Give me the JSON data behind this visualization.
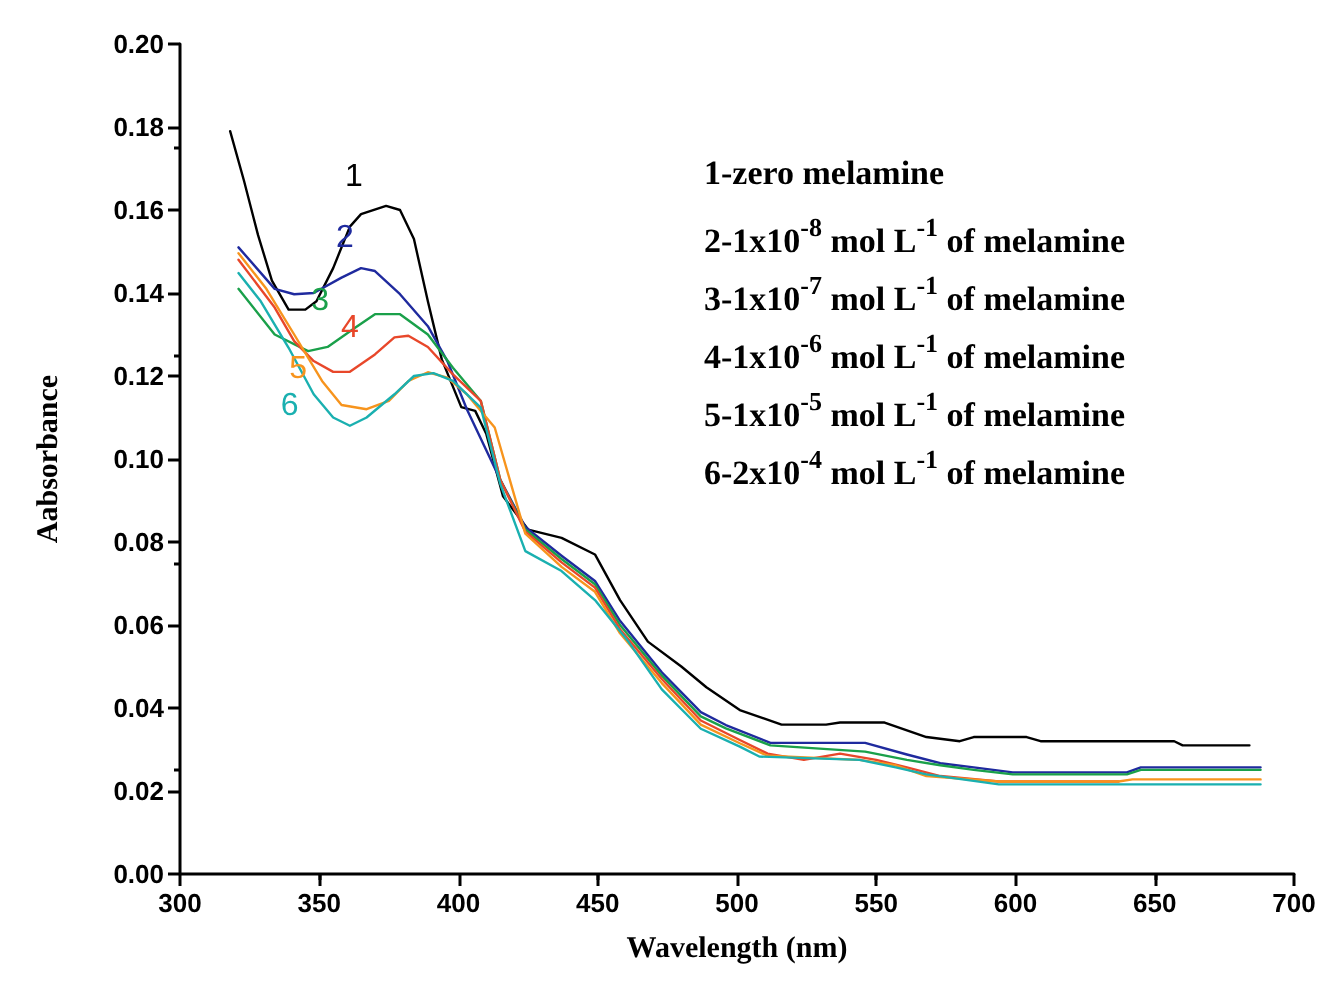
{
  "chart_data": {
    "type": "line",
    "xlabel": "Wavelength (nm)",
    "ylabel": "Aabsorbance",
    "xlim": [
      300,
      700
    ],
    "xticks": [
      300,
      350,
      400,
      450,
      500,
      550,
      600,
      650,
      700
    ],
    "ylim": [
      0,
      0.2
    ],
    "yticks": [
      {
        "value": 0,
        "label": "0.00"
      },
      0.02,
      0.04,
      0.06,
      0.08,
      {
        "value": 0.1,
        "label": "0.10"
      },
      0.12,
      0.14,
      0.16,
      0.18,
      {
        "value": 0.2,
        "label": "0.20"
      }
    ],
    "grid": false,
    "marker": "none",
    "line_style": "solid",
    "series": [
      {
        "name": "1",
        "color": "#000000",
        "x": [
          318,
          323,
          328,
          333,
          339,
          345,
          349,
          355,
          361,
          365,
          374,
          379,
          384,
          389,
          394,
          401,
          406,
          410,
          416,
          425,
          437,
          449,
          458,
          468,
          480,
          489,
          501,
          516,
          532,
          537,
          553,
          568,
          580,
          585,
          604,
          609,
          657,
          660,
          684
        ],
        "values": [
          0.179,
          0.167,
          0.154,
          0.143,
          0.136,
          0.136,
          0.138,
          0.146,
          0.156,
          0.159,
          0.161,
          0.16,
          0.153,
          0.138,
          0.124,
          0.1125,
          0.1116,
          0.106,
          0.091,
          0.083,
          0.081,
          0.077,
          0.066,
          0.056,
          0.05,
          0.045,
          0.0395,
          0.036,
          0.036,
          0.0365,
          0.0365,
          0.033,
          0.032,
          0.033,
          0.033,
          0.032,
          0.032,
          0.031,
          0.031
        ]
      },
      {
        "name": "2",
        "color": "#1f2a9e",
        "x": [
          321,
          334,
          341,
          348,
          358,
          365,
          370,
          379,
          389,
          396,
          403,
          415,
          424,
          437,
          449,
          458,
          473,
          487,
          496,
          512,
          546,
          561,
          573,
          585,
          599,
          640,
          645,
          688
        ],
        "values": [
          0.151,
          0.141,
          0.1397,
          0.14,
          0.1437,
          0.146,
          0.1453,
          0.1397,
          0.132,
          0.1236,
          0.112,
          0.095,
          0.0836,
          0.0767,
          0.0706,
          0.061,
          0.0486,
          0.039,
          0.0359,
          0.0316,
          0.0316,
          0.0288,
          0.0267,
          0.0257,
          0.0245,
          0.0245,
          0.0257,
          0.0257
        ]
      },
      {
        "name": "3",
        "color": "#1aa04a",
        "x": [
          321,
          334,
          346,
          353,
          363,
          370,
          379,
          389,
          398,
          408,
          415,
          424,
          437,
          449,
          458,
          473,
          487,
          496,
          512,
          546,
          561,
          573,
          585,
          599,
          640,
          645,
          688
        ],
        "values": [
          0.141,
          0.13,
          0.126,
          0.127,
          0.1317,
          0.1349,
          0.1349,
          0.13,
          0.122,
          0.114,
          0.095,
          0.083,
          0.0759,
          0.0698,
          0.06,
          0.0478,
          0.038,
          0.0351,
          0.031,
          0.0295,
          0.0275,
          0.0262,
          0.0251,
          0.024,
          0.024,
          0.0251,
          0.0251
        ]
      },
      {
        "name": "4",
        "color": "#e8472a",
        "x": [
          321,
          334,
          341,
          348,
          355,
          361,
          370,
          377,
          382,
          389,
          398,
          408,
          415,
          424,
          437,
          449,
          458,
          473,
          487,
          501,
          511,
          524,
          537,
          550,
          561,
          573,
          594,
          637
        ],
        "values": [
          0.148,
          0.1365,
          0.1284,
          0.1236,
          0.121,
          0.121,
          0.1252,
          0.1293,
          0.1297,
          0.127,
          0.1204,
          0.114,
          0.095,
          0.0825,
          0.0751,
          0.069,
          0.059,
          0.047,
          0.037,
          0.0323,
          0.029,
          0.0275,
          0.029,
          0.0275,
          0.0257,
          0.0236,
          0.0223,
          0.0223
        ]
      },
      {
        "name": "5",
        "color": "#f7941d",
        "x": [
          321,
          331,
          341,
          351,
          358,
          367,
          375,
          382,
          389,
          396,
          403,
          413,
          424,
          437,
          449,
          458,
          473,
          487,
          501,
          511,
          544,
          557,
          568,
          594,
          637,
          642,
          688
        ],
        "values": [
          0.1496,
          0.141,
          0.13,
          0.1188,
          0.113,
          0.112,
          0.114,
          0.1188,
          0.1209,
          0.1196,
          0.1156,
          0.1076,
          0.082,
          0.074,
          0.068,
          0.058,
          0.046,
          0.036,
          0.0315,
          0.0285,
          0.0275,
          0.0262,
          0.0236,
          0.0223,
          0.0223,
          0.0228,
          0.0228
        ]
      },
      {
        "name": "6",
        "color": "#1ab0b0",
        "x": [
          321,
          329,
          339,
          348,
          355,
          361,
          367,
          377,
          384,
          391,
          398,
          408,
          415,
          424,
          437,
          449,
          461,
          473,
          487,
          501,
          508,
          544,
          557,
          568,
          594,
          688
        ],
        "values": [
          0.1448,
          0.138,
          0.1268,
          0.1156,
          0.11,
          0.108,
          0.11,
          0.1156,
          0.12,
          0.1207,
          0.1188,
          0.1124,
          0.094,
          0.0778,
          0.073,
          0.066,
          0.056,
          0.0445,
          0.035,
          0.0307,
          0.0283,
          0.0275,
          0.0257,
          0.024,
          0.0216,
          0.0216
        ]
      }
    ],
    "annotations": [
      "1-zero melamine",
      "2-1x10$^{-8}$ mol L$^{-1}$ of melamine",
      "3-1x10$^{-7}$ mol L$^{-1}$ of melamine",
      "4-1x10$^{-6}$ mol L$^{-1}$ of melamine",
      "5-1x10$^{-5}$ mol L$^{-1}$ of melamine",
      "6-2x10$^{-4}$ mol L$^{-1}$ of melamine"
    ]
  }
}
